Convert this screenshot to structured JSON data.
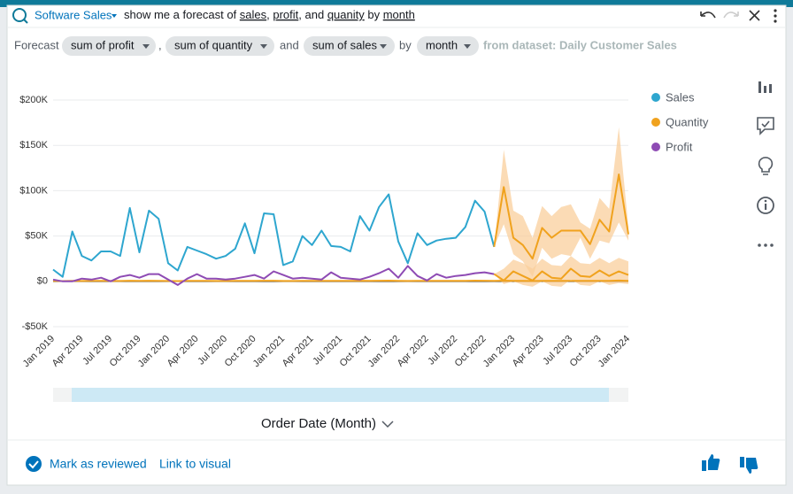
{
  "header": {
    "dataset": "Software Sales",
    "query": [
      "show me a forecast of ",
      "sales",
      ", ",
      "profit",
      ", and ",
      "quanity",
      " by ",
      "month"
    ]
  },
  "interpretation": {
    "lead": "Forecast",
    "chips": [
      "sum of profit",
      "sum of quantity",
      "sum of sales",
      "month"
    ],
    "joins": [
      ",",
      "and",
      "by"
    ],
    "source": "from dataset: Daily Customer Sales"
  },
  "chart_data": {
    "type": "line",
    "categories": [
      "Jan 2019",
      null,
      null,
      "Apr 2019",
      null,
      null,
      "Jul 2019",
      null,
      null,
      "Oct 2019",
      null,
      null,
      "Jan 2020",
      null,
      null,
      "Apr 2020",
      null,
      null,
      "Jul 2020",
      null,
      null,
      "Oct 2020",
      null,
      null,
      "Jan 2021",
      null,
      null,
      "Apr 2021",
      null,
      null,
      "Jul 2021",
      null,
      null,
      "Oct 2021",
      null,
      null,
      "Jan 2022",
      null,
      null,
      "Apr 2022",
      null,
      null,
      "Jul 2022",
      null,
      null,
      "Oct 2022",
      null,
      null,
      "Jan 2023",
      null,
      null,
      "Apr 2023",
      null,
      null,
      "Jul 2023",
      null,
      null,
      "Oct 2023",
      null,
      null,
      "Jan 2024"
    ],
    "series": [
      {
        "name": "Sales",
        "color": "#2ea6cf",
        "values": [
          13000,
          5000,
          55000,
          28000,
          23000,
          33000,
          33000,
          28000,
          81000,
          32000,
          78000,
          69000,
          20000,
          12000,
          38000,
          34000,
          30000,
          25000,
          28000,
          36000,
          64000,
          31000,
          75000,
          74000,
          18000,
          22000,
          50000,
          40000,
          56000,
          39000,
          38000,
          33000,
          72000,
          56000,
          82000,
          96000,
          44000,
          20000,
          53000,
          40000,
          45000,
          47000,
          48000,
          60000,
          89000,
          77000,
          38000,
          null,
          null,
          null,
          null,
          null,
          null,
          null,
          null,
          null,
          null,
          null,
          null,
          null,
          null
        ]
      },
      {
        "name": "Quantity",
        "color": "#f0a21e",
        "values": [
          500,
          300,
          600,
          400,
          500,
          450,
          500,
          400,
          700,
          450,
          650,
          600,
          400,
          300,
          500,
          450,
          450,
          400,
          400,
          500,
          600,
          450,
          650,
          650,
          350,
          400,
          550,
          500,
          550,
          500,
          450,
          450,
          650,
          550,
          700,
          800,
          500,
          350,
          550,
          500,
          500,
          500,
          500,
          600,
          750,
          650,
          450,
          800,
          500,
          450,
          350,
          550,
          500,
          550,
          550,
          550,
          450,
          600,
          550,
          850,
          500
        ]
      },
      {
        "name": "Profit",
        "color": "#8e4bb4",
        "values": [
          2000,
          0,
          0,
          3000,
          2000,
          4000,
          0,
          5000,
          7000,
          4000,
          8000,
          8000,
          2000,
          -4000,
          3000,
          8000,
          3000,
          3000,
          2000,
          3000,
          5000,
          7000,
          3000,
          11000,
          7000,
          3000,
          4000,
          3000,
          2000,
          10000,
          4000,
          3000,
          2000,
          5000,
          9000,
          14000,
          4000,
          17000,
          6000,
          1000,
          8000,
          4000,
          6000,
          7000,
          9000,
          10000,
          8000,
          null,
          null,
          null,
          null,
          null,
          null,
          null,
          null,
          null,
          null,
          null,
          null,
          null,
          null
        ]
      }
    ],
    "forecast": [
      {
        "color": "#f0a21e",
        "band_color": "#f9cf9c",
        "values": [
          null,
          null,
          null,
          null,
          null,
          null,
          null,
          null,
          null,
          null,
          null,
          null,
          null,
          null,
          null,
          null,
          null,
          null,
          null,
          null,
          null,
          null,
          null,
          null,
          null,
          null,
          null,
          null,
          null,
          null,
          null,
          null,
          null,
          null,
          null,
          null,
          null,
          null,
          null,
          null,
          null,
          null,
          null,
          null,
          null,
          null,
          38000,
          104000,
          48000,
          40000,
          25000,
          59000,
          48000,
          56000,
          56000,
          56000,
          41000,
          68000,
          55000,
          118000,
          52000
        ],
        "upper": [
          null,
          null,
          null,
          null,
          null,
          null,
          null,
          null,
          null,
          null,
          null,
          null,
          null,
          null,
          null,
          null,
          null,
          null,
          null,
          null,
          null,
          null,
          null,
          null,
          null,
          null,
          null,
          null,
          null,
          null,
          null,
          null,
          null,
          null,
          null,
          null,
          null,
          null,
          null,
          null,
          null,
          null,
          null,
          null,
          null,
          null,
          38000,
          145000,
          78000,
          72000,
          48000,
          83000,
          72000,
          82000,
          85000,
          65000,
          58000,
          92000,
          80000,
          170000,
          60000
        ],
        "lower": [
          null,
          null,
          null,
          null,
          null,
          null,
          null,
          null,
          null,
          null,
          null,
          null,
          null,
          null,
          null,
          null,
          null,
          null,
          null,
          null,
          null,
          null,
          null,
          null,
          null,
          null,
          null,
          null,
          null,
          null,
          null,
          null,
          null,
          null,
          null,
          null,
          null,
          null,
          null,
          null,
          null,
          null,
          null,
          null,
          null,
          null,
          38000,
          63000,
          30000,
          22000,
          5000,
          37000,
          25000,
          30000,
          28000,
          48000,
          25000,
          45000,
          42000,
          65000,
          45000
        ]
      },
      {
        "color": "#f0a21e",
        "band_color": "#f9cf9c",
        "values": [
          null,
          null,
          null,
          null,
          null,
          null,
          null,
          null,
          null,
          null,
          null,
          null,
          null,
          null,
          null,
          null,
          null,
          null,
          null,
          null,
          null,
          null,
          null,
          null,
          null,
          null,
          null,
          null,
          null,
          null,
          null,
          null,
          null,
          null,
          null,
          null,
          null,
          null,
          null,
          null,
          null,
          null,
          null,
          null,
          null,
          null,
          8000,
          1000,
          11000,
          6000,
          1000,
          11000,
          4000,
          3000,
          14000,
          6000,
          5000,
          12000,
          6000,
          11000,
          7000
        ],
        "upper": [
          null,
          null,
          null,
          null,
          null,
          null,
          null,
          null,
          null,
          null,
          null,
          null,
          null,
          null,
          null,
          null,
          null,
          null,
          null,
          null,
          null,
          null,
          null,
          null,
          null,
          null,
          null,
          null,
          null,
          null,
          null,
          null,
          null,
          null,
          null,
          null,
          null,
          null,
          null,
          null,
          null,
          null,
          null,
          null,
          null,
          null,
          8000,
          14000,
          24000,
          20000,
          14000,
          25000,
          18000,
          17000,
          28000,
          20000,
          19000,
          26000,
          20000,
          26000,
          22000
        ],
        "lower": [
          null,
          null,
          null,
          null,
          null,
          null,
          null,
          null,
          null,
          null,
          null,
          null,
          null,
          null,
          null,
          null,
          null,
          null,
          null,
          null,
          null,
          null,
          null,
          null,
          null,
          null,
          null,
          null,
          null,
          null,
          null,
          null,
          null,
          null,
          null,
          null,
          null,
          null,
          null,
          null,
          null,
          null,
          null,
          null,
          null,
          null,
          8000,
          -3000,
          0,
          -4000,
          -6000,
          0,
          -5000,
          -6000,
          2000,
          -4000,
          -5000,
          0,
          -4000,
          -2000,
          -3000
        ]
      }
    ],
    "ylim": [
      -50000,
      200000
    ],
    "yticks": [
      {
        "value": -50000,
        "label": "-$50K"
      },
      {
        "value": 0,
        "label": "$0"
      },
      {
        "value": 50000,
        "label": "$50K"
      },
      {
        "value": 100000,
        "label": "$100K"
      },
      {
        "value": 150000,
        "label": "$150K"
      },
      {
        "value": 200000,
        "label": "$200K"
      }
    ],
    "grid": true,
    "x_label": "Order Date (Month)"
  },
  "footer": {
    "actions": [
      "Mark as reviewed",
      "Link to visual"
    ]
  }
}
